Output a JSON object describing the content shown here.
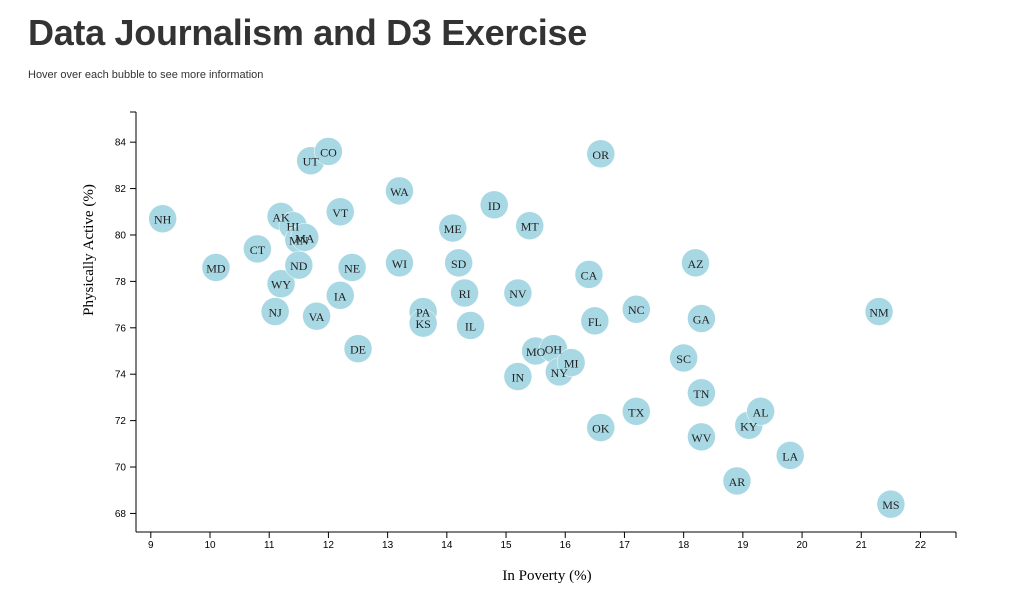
{
  "header": {
    "title": "Data Journalism and D3 Exercise",
    "subtitle": "Hover over each bubble to see more information"
  },
  "chart_data": {
    "type": "scatter",
    "xlabel": "In Poverty (%)",
    "ylabel": "Physically Active (%)",
    "xlim": [
      8.75,
      22.6
    ],
    "ylim": [
      67.2,
      85.3
    ],
    "xticks": [
      9,
      10,
      11,
      12,
      13,
      14,
      15,
      16,
      17,
      18,
      19,
      20,
      21,
      22
    ],
    "yticks": [
      68,
      70,
      72,
      74,
      76,
      78,
      80,
      82,
      84
    ],
    "grid": false,
    "bubble_color": "#a8d8e4",
    "points": [
      {
        "label": "NH",
        "x": 9.2,
        "y": 80.7
      },
      {
        "label": "MD",
        "x": 10.1,
        "y": 78.6
      },
      {
        "label": "CT",
        "x": 10.8,
        "y": 79.4
      },
      {
        "label": "AK",
        "x": 11.2,
        "y": 80.8
      },
      {
        "label": "HI",
        "x": 11.4,
        "y": 80.4
      },
      {
        "label": "MN",
        "x": 11.5,
        "y": 79.8
      },
      {
        "label": "MA",
        "x": 11.6,
        "y": 79.9
      },
      {
        "label": "WY",
        "x": 11.2,
        "y": 77.9
      },
      {
        "label": "ND",
        "x": 11.5,
        "y": 78.7
      },
      {
        "label": "NJ",
        "x": 11.1,
        "y": 76.7
      },
      {
        "label": "VA",
        "x": 11.8,
        "y": 76.5
      },
      {
        "label": "UT",
        "x": 11.7,
        "y": 83.2
      },
      {
        "label": "CO",
        "x": 12.0,
        "y": 83.6
      },
      {
        "label": "VT",
        "x": 12.2,
        "y": 81.0
      },
      {
        "label": "NE",
        "x": 12.4,
        "y": 78.6
      },
      {
        "label": "IA",
        "x": 12.2,
        "y": 77.4
      },
      {
        "label": "DE",
        "x": 12.5,
        "y": 75.1
      },
      {
        "label": "WA",
        "x": 13.2,
        "y": 81.9
      },
      {
        "label": "WI",
        "x": 13.2,
        "y": 78.8
      },
      {
        "label": "PA",
        "x": 13.6,
        "y": 76.7
      },
      {
        "label": "KS",
        "x": 13.6,
        "y": 76.2
      },
      {
        "label": "ME",
        "x": 14.1,
        "y": 80.3
      },
      {
        "label": "SD",
        "x": 14.2,
        "y": 78.8
      },
      {
        "label": "RI",
        "x": 14.3,
        "y": 77.5
      },
      {
        "label": "IL",
        "x": 14.4,
        "y": 76.1
      },
      {
        "label": "ID",
        "x": 14.8,
        "y": 81.3
      },
      {
        "label": "MT",
        "x": 15.4,
        "y": 80.4
      },
      {
        "label": "NV",
        "x": 15.2,
        "y": 77.5
      },
      {
        "label": "IN",
        "x": 15.2,
        "y": 73.9
      },
      {
        "label": "MO",
        "x": 15.5,
        "y": 75.0
      },
      {
        "label": "OH",
        "x": 15.8,
        "y": 75.1
      },
      {
        "label": "NY",
        "x": 15.9,
        "y": 74.1
      },
      {
        "label": "MI",
        "x": 16.1,
        "y": 74.5
      },
      {
        "label": "CA",
        "x": 16.4,
        "y": 78.3
      },
      {
        "label": "FL",
        "x": 16.5,
        "y": 76.3
      },
      {
        "label": "OR",
        "x": 16.6,
        "y": 83.5
      },
      {
        "label": "OK",
        "x": 16.6,
        "y": 71.7
      },
      {
        "label": "NC",
        "x": 17.2,
        "y": 76.8
      },
      {
        "label": "TX",
        "x": 17.2,
        "y": 72.4
      },
      {
        "label": "SC",
        "x": 18.0,
        "y": 74.7
      },
      {
        "label": "AZ",
        "x": 18.2,
        "y": 78.8
      },
      {
        "label": "GA",
        "x": 18.3,
        "y": 76.4
      },
      {
        "label": "TN",
        "x": 18.3,
        "y": 73.2
      },
      {
        "label": "WV",
        "x": 18.3,
        "y": 71.3
      },
      {
        "label": "AR",
        "x": 18.9,
        "y": 69.4
      },
      {
        "label": "KY",
        "x": 19.1,
        "y": 71.8
      },
      {
        "label": "AL",
        "x": 19.3,
        "y": 72.4
      },
      {
        "label": "LA",
        "x": 19.8,
        "y": 70.5
      },
      {
        "label": "NM",
        "x": 21.3,
        "y": 76.7
      },
      {
        "label": "MS",
        "x": 21.5,
        "y": 68.4
      }
    ]
  }
}
